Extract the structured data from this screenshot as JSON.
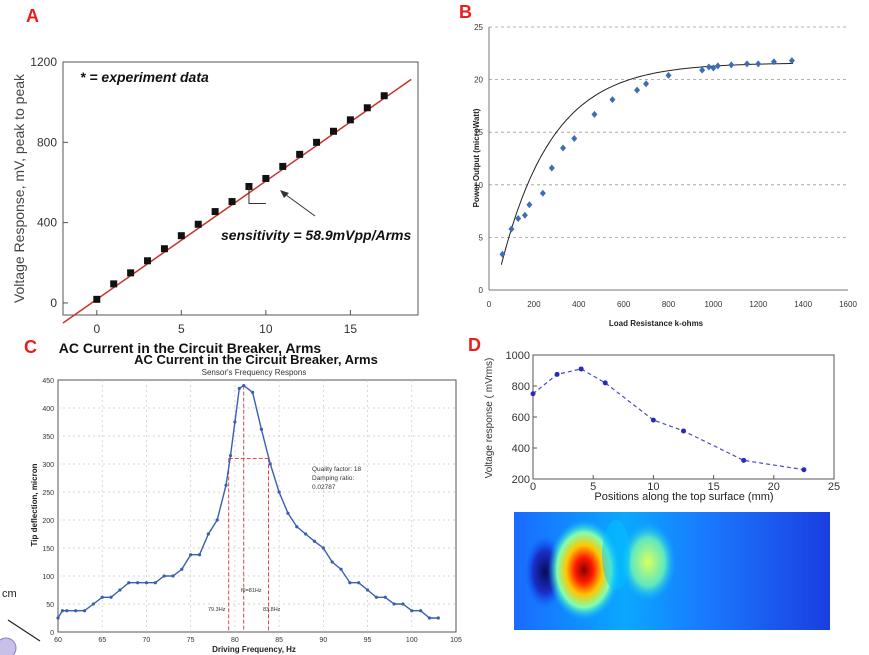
{
  "panel_letters": [
    "A",
    "B",
    "C",
    "D"
  ],
  "stray_text": "cm",
  "colors": {
    "accent_red": "#e8201d",
    "series_blue": "#3a5fb0",
    "marker_black": "#111111",
    "fit_red": "#c8322a"
  },
  "chart_data": [
    {
      "id": "A",
      "type": "scatter",
      "title": "",
      "xlabel": "AC Current in the Circuit Breaker, Arms",
      "ylabel": "Voltage Response, mV, peak to peak",
      "xlim": [
        -2,
        19
      ],
      "ylim": [
        -60,
        1200
      ],
      "xticks": [
        0,
        5,
        10,
        15
      ],
      "yticks": [
        0,
        400,
        800,
        1200
      ],
      "legend_text": "* = experiment data",
      "annotation": "sensitivity = 58.9mVpp/Arms",
      "x": [
        0,
        1,
        2,
        3,
        4,
        5,
        6,
        7,
        8,
        9,
        10,
        11,
        12,
        13,
        14,
        15,
        16,
        17
      ],
      "y": [
        18,
        95,
        150,
        210,
        270,
        335,
        392,
        455,
        505,
        580,
        620,
        680,
        740,
        800,
        855,
        912,
        972,
        1032
      ],
      "fit": {
        "slope": 58.9,
        "intercept": 18
      }
    },
    {
      "id": "B",
      "type": "scatter",
      "title": "",
      "xlabel": "Load Resistance k-ohms",
      "ylabel": "Power Output (microWatt)",
      "xlim": [
        0,
        1600
      ],
      "ylim": [
        0,
        25
      ],
      "xticks": [
        0,
        200,
        400,
        600,
        800,
        1000,
        1200,
        1400,
        1600
      ],
      "yticks": [
        0,
        5,
        10,
        15,
        20,
        25
      ],
      "x": [
        60,
        100,
        130,
        160,
        180,
        240,
        280,
        330,
        380,
        470,
        550,
        660,
        700,
        800,
        950,
        980,
        1000,
        1020,
        1080,
        1150,
        1200,
        1270,
        1350
      ],
      "y": [
        3.4,
        5.8,
        6.8,
        7.1,
        8.1,
        9.2,
        11.6,
        13.5,
        14.4,
        16.7,
        18.1,
        19.0,
        19.6,
        20.4,
        20.9,
        21.2,
        21.1,
        21.3,
        21.4,
        21.5,
        21.5,
        21.7,
        21.8
      ]
    },
    {
      "id": "C",
      "type": "line",
      "title": "AC Current in the Circuit Breaker, Arms",
      "subtitle": "Sensor's Frequency Respons",
      "xlabel": "Driving Frequency, Hz",
      "ylabel": "Tip deflection, micron",
      "xlim": [
        60,
        105
      ],
      "ylim": [
        0,
        450
      ],
      "xticks": [
        60,
        65,
        70,
        75,
        80,
        85,
        90,
        95,
        100,
        105
      ],
      "yticks": [
        0,
        50,
        100,
        150,
        200,
        250,
        300,
        350,
        400,
        450
      ],
      "annotation_lines": [
        "Quality factor: 18",
        "Damping ratio:",
        "0.02787"
      ],
      "markers": [
        "79.3Hz",
        "f0=81Hz",
        "83.8Hz"
      ],
      "marker_freqs": [
        79.3,
        81,
        83.8
      ],
      "half_power_level": 310,
      "x": [
        60,
        60.5,
        61,
        62,
        63,
        64,
        65,
        66,
        67,
        68,
        69,
        70,
        71,
        72,
        73,
        74,
        75,
        76,
        77,
        78,
        79,
        79.5,
        80,
        80.5,
        81,
        82,
        83,
        84,
        85,
        86,
        87,
        88,
        89,
        90,
        91,
        92,
        93,
        94,
        95,
        96,
        97,
        98,
        99,
        100,
        101,
        102,
        103
      ],
      "y": [
        25,
        38,
        38,
        38,
        38,
        50,
        62,
        62,
        75,
        88,
        88,
        88,
        88,
        100,
        100,
        112,
        138,
        138,
        175,
        200,
        262,
        315,
        375,
        435,
        440,
        428,
        362,
        300,
        250,
        212,
        188,
        175,
        162,
        150,
        125,
        112,
        88,
        88,
        75,
        62,
        62,
        50,
        50,
        38,
        38,
        25,
        25
      ]
    },
    {
      "id": "D",
      "type": "line",
      "title": "",
      "xlabel": "Positions along the top surface (mm)",
      "ylabel": "Voltage response ( mVrms)",
      "xlim": [
        0,
        25
      ],
      "ylim": [
        200,
        1000
      ],
      "xticks": [
        0,
        5,
        10,
        15,
        20,
        25
      ],
      "yticks": [
        200,
        400,
        600,
        800,
        1000
      ],
      "x": [
        0,
        2,
        4,
        6,
        10,
        12.5,
        17.5,
        22.5
      ],
      "y": [
        750,
        875,
        910,
        820,
        580,
        510,
        320,
        260
      ]
    }
  ]
}
